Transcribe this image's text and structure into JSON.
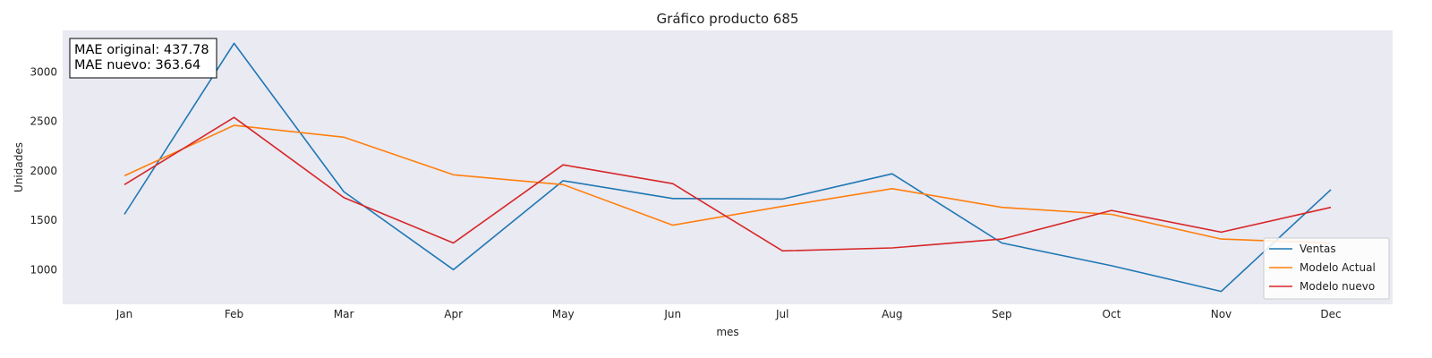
{
  "chart_data": {
    "type": "line",
    "title": "Gráfico producto 685",
    "xlabel": "mes",
    "ylabel": "Unidades",
    "categories": [
      "Jan",
      "Feb",
      "Mar",
      "Apr",
      "May",
      "Jun",
      "Jul",
      "Aug",
      "Sep",
      "Oct",
      "Nov",
      "Dec"
    ],
    "ylim": [
      650,
      3420
    ],
    "yticks": [
      1000,
      1500,
      2000,
      2500,
      3000
    ],
    "ytick_labels": [
      "1000",
      "1500",
      "2000",
      "2500",
      "3000"
    ],
    "grid": false,
    "legend_position": "lower-right",
    "series": [
      {
        "name": "Ventas",
        "color": "#1f77b4",
        "values": [
          1560,
          3290,
          1790,
          1000,
          1900,
          1720,
          1715,
          1970,
          1270,
          1040,
          780,
          1810
        ]
      },
      {
        "name": "Modelo Actual",
        "color": "#ff7f0e",
        "values": [
          1950,
          2460,
          2340,
          1960,
          1860,
          1450,
          1640,
          1820,
          1630,
          1560,
          1310,
          1270
        ]
      },
      {
        "name": "Modelo nuevo",
        "color": "#d62728",
        "values": [
          1860,
          2540,
          1730,
          1270,
          2060,
          1870,
          1190,
          1220,
          1310,
          1600,
          1380,
          1630
        ]
      }
    ],
    "annotation": {
      "lines": [
        "MAE original: 437.78",
        "MAE nuevo: 363.64"
      ]
    },
    "colors": {
      "plot_background": "#eaeaf2",
      "page_background": "#ffffff"
    }
  }
}
